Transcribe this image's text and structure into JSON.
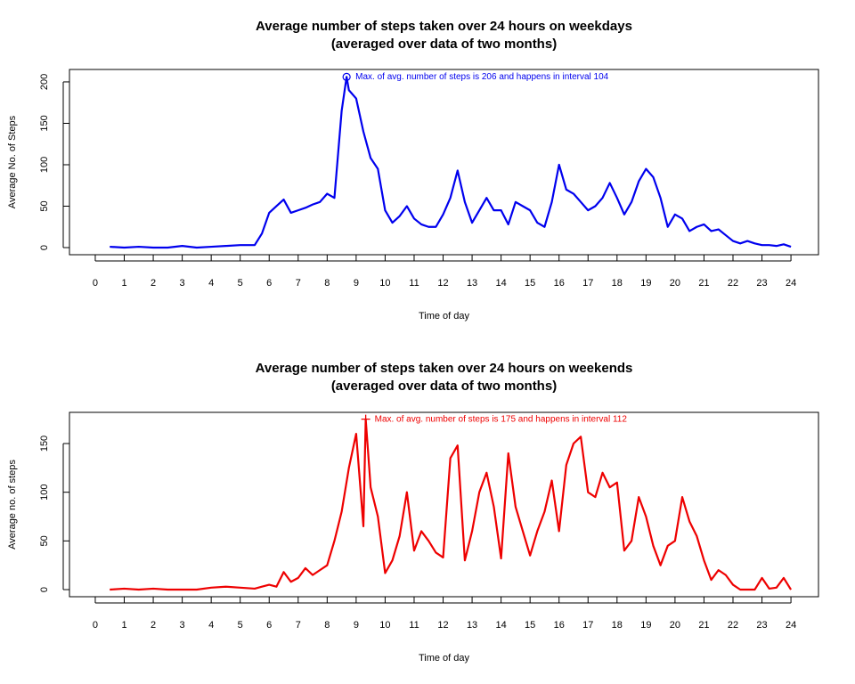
{
  "chart_data": [
    {
      "type": "line",
      "title": "Average number of steps taken over 24 hours on weekdays",
      "subtitle": "(averaged over data of two months)",
      "x_label": "Time of day",
      "y_label": "Average No. of Steps",
      "xlim": [
        -0.89,
        24.95
      ],
      "xticks": [
        0,
        1,
        2,
        3,
        4,
        5,
        6,
        7,
        8,
        9,
        10,
        11,
        12,
        13,
        14,
        15,
        16,
        17,
        18,
        19,
        20,
        21,
        22,
        23,
        24
      ],
      "ylim": [
        -8.6,
        215
      ],
      "yticks": [
        0,
        50,
        100,
        150,
        200
      ],
      "x": [
        0.5,
        1,
        1.5,
        2,
        2.5,
        3,
        3.5,
        4,
        4.5,
        5,
        5.5,
        5.75,
        6,
        6.25,
        6.5,
        6.75,
        7,
        7.25,
        7.5,
        7.75,
        8,
        8.25,
        8.5,
        8.67,
        8.75,
        9,
        9.25,
        9.5,
        9.75,
        10,
        10.25,
        10.5,
        10.75,
        11,
        11.25,
        11.5,
        11.75,
        12,
        12.25,
        12.5,
        12.75,
        13,
        13.25,
        13.5,
        13.75,
        14,
        14.25,
        14.5,
        14.75,
        15,
        15.25,
        15.5,
        15.75,
        16,
        16.25,
        16.5,
        16.75,
        17,
        17.25,
        17.5,
        17.75,
        18,
        18.25,
        18.5,
        18.75,
        19,
        19.25,
        19.5,
        19.75,
        20,
        20.25,
        20.5,
        20.75,
        21,
        21.25,
        21.5,
        21.75,
        22,
        22.25,
        22.5,
        22.75,
        23,
        23.25,
        23.5,
        23.75,
        24
      ],
      "series": [
        {
          "color": "#0000ee",
          "values": [
            1,
            0,
            1,
            0,
            0,
            2,
            0,
            1,
            2,
            3,
            3,
            17,
            42,
            50,
            58,
            42,
            45,
            48,
            52,
            55,
            65,
            60,
            165,
            206,
            190,
            180,
            140,
            108,
            95,
            45,
            30,
            38,
            50,
            35,
            28,
            25,
            25,
            40,
            60,
            93,
            55,
            30,
            45,
            60,
            45,
            45,
            28,
            55,
            50,
            45,
            30,
            25,
            55,
            100,
            70,
            65,
            55,
            45,
            50,
            60,
            78,
            60,
            40,
            55,
            80,
            95,
            85,
            60,
            25,
            40,
            35,
            20,
            25,
            28,
            20,
            22,
            15,
            8,
            5,
            8,
            5,
            3,
            3,
            2,
            4,
            1
          ]
        }
      ],
      "annotation": {
        "text": "Max. of avg. number of steps is 206  and happens in interval 104",
        "x": 8.67,
        "y": 206,
        "marker": "circle"
      }
    },
    {
      "type": "line",
      "title": "Average number of steps taken over 24 hours on weekends",
      "subtitle": "(averaged over data of two months)",
      "x_label": "Time of day",
      "y_label": "Average no. of steps",
      "xlim": [
        -0.89,
        24.95
      ],
      "xticks": [
        0,
        1,
        2,
        3,
        4,
        5,
        6,
        7,
        8,
        9,
        10,
        11,
        12,
        13,
        14,
        15,
        16,
        17,
        18,
        19,
        20,
        21,
        22,
        23,
        24
      ],
      "ylim": [
        -7.3,
        182
      ],
      "yticks": [
        0,
        50,
        100,
        150
      ],
      "x": [
        0.5,
        1,
        1.5,
        2,
        2.5,
        3,
        3.5,
        4,
        4.5,
        5,
        5.5,
        5.75,
        6,
        6.25,
        6.5,
        6.75,
        7,
        7.25,
        7.5,
        7.75,
        8,
        8.25,
        8.5,
        8.75,
        9,
        9.25,
        9.33,
        9.5,
        9.75,
        10,
        10.25,
        10.5,
        10.75,
        11,
        11.25,
        11.5,
        11.75,
        12,
        12.25,
        12.5,
        12.75,
        13,
        13.25,
        13.5,
        13.75,
        14,
        14.25,
        14.5,
        14.75,
        15,
        15.25,
        15.5,
        15.75,
        16,
        16.25,
        16.5,
        16.75,
        17,
        17.25,
        17.5,
        17.75,
        18,
        18.25,
        18.5,
        18.75,
        19,
        19.25,
        19.5,
        19.75,
        20,
        20.25,
        20.5,
        20.75,
        21,
        21.25,
        21.5,
        21.75,
        22,
        22.25,
        22.5,
        22.75,
        23,
        23.25,
        23.5,
        23.75,
        24
      ],
      "series": [
        {
          "color": "#ee0000",
          "values": [
            0,
            1,
            0,
            1,
            0,
            0,
            0,
            2,
            3,
            2,
            1,
            3,
            5,
            3,
            18,
            8,
            12,
            22,
            15,
            20,
            25,
            50,
            80,
            125,
            160,
            65,
            175,
            105,
            75,
            17,
            30,
            55,
            100,
            40,
            60,
            50,
            38,
            33,
            135,
            148,
            30,
            60,
            100,
            120,
            85,
            32,
            140,
            85,
            60,
            35,
            60,
            80,
            112,
            60,
            128,
            150,
            157,
            100,
            95,
            120,
            105,
            110,
            40,
            50,
            95,
            75,
            45,
            25,
            45,
            50,
            95,
            70,
            55,
            30,
            10,
            20,
            15,
            5,
            0,
            0,
            0,
            12,
            1,
            2,
            12,
            0
          ]
        }
      ],
      "annotation": {
        "text": "Max. of avg. number of steps is 175  and happens in interval 112",
        "x": 9.33,
        "y": 175,
        "marker": "plus"
      }
    }
  ]
}
